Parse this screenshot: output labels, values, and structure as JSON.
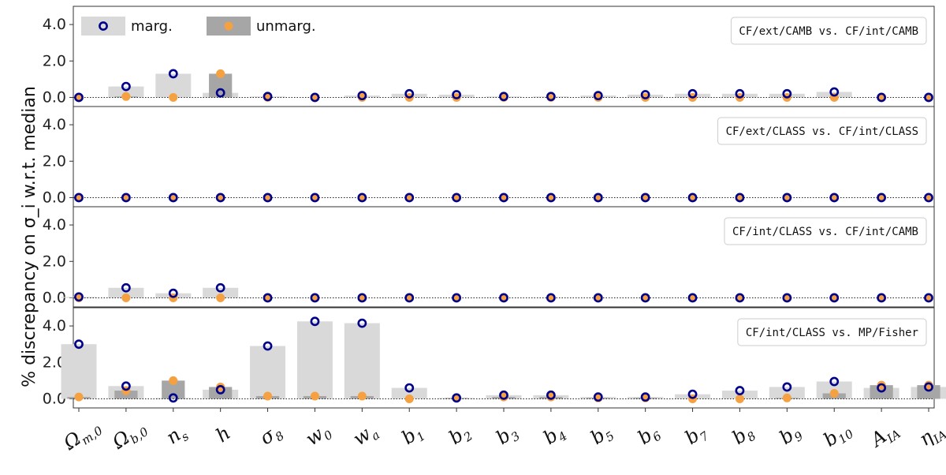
{
  "chart_data": {
    "type": "bar",
    "ylabel": "% discrepancy on σ_i w.r.t. median",
    "categories": [
      "Ω_m,0",
      "Ω_b,0",
      "n_s",
      "h",
      "σ_8",
      "w_0",
      "w_a",
      "b_1",
      "b_2",
      "b_3",
      "b_4",
      "b_5",
      "b_6",
      "b_7",
      "b_8",
      "b_9",
      "b_10",
      "A_IA",
      "η_IA"
    ],
    "ylim": [
      -0.5,
      5.0
    ],
    "yticks": [
      "0.0",
      "2.0",
      "4.0"
    ],
    "legend": {
      "placement": "top-left",
      "entries": [
        "marg.",
        "unmarg."
      ]
    },
    "colors": {
      "marg_bar": "#d9d9d9",
      "unmarg_bar": "#a6a6a6",
      "marg_marker": "#00008b",
      "unmarg_marker": "#f5a142"
    },
    "panels": [
      {
        "label": "CF/ext/CAMB vs. CF/int/CAMB",
        "marg": [
          0.0,
          0.6,
          1.3,
          0.25,
          0.05,
          0.0,
          0.1,
          0.2,
          0.15,
          0.05,
          0.05,
          0.1,
          0.15,
          0.2,
          0.2,
          0.2,
          0.3,
          0.0,
          0.0
        ],
        "unmarg": [
          0.0,
          0.05,
          0.0,
          1.3,
          0.0,
          0.0,
          0.0,
          0.0,
          0.0,
          0.0,
          0.0,
          0.0,
          0.0,
          0.0,
          0.0,
          0.0,
          0.0,
          0.0,
          0.0
        ]
      },
      {
        "label": "CF/ext/CLASS vs. CF/int/CLASS",
        "marg": [
          0,
          0,
          0,
          0,
          0,
          0,
          0,
          0,
          0,
          0,
          0,
          0,
          0,
          0,
          0,
          0,
          0,
          0,
          0
        ],
        "unmarg": [
          0,
          0,
          0,
          0,
          0,
          0,
          0,
          0,
          0,
          0,
          0,
          0,
          0,
          0,
          0,
          0,
          0,
          0,
          0
        ]
      },
      {
        "label": "CF/int/CLASS vs. CF/int/CAMB",
        "marg": [
          0.05,
          0.55,
          0.25,
          0.55,
          0.0,
          0.0,
          0.0,
          0.0,
          0.0,
          0.0,
          0.0,
          0.0,
          0.0,
          0.0,
          0.0,
          0.0,
          0.0,
          0.0,
          0.0
        ],
        "unmarg": [
          0.0,
          0.0,
          0.0,
          0.0,
          0.0,
          0.0,
          0.0,
          0.0,
          0.0,
          0.0,
          0.0,
          0.0,
          0.0,
          0.0,
          0.0,
          0.0,
          0.0,
          0.0,
          0.0
        ]
      },
      {
        "label": "CF/int/CLASS vs. MP/Fisher",
        "marg": [
          3.0,
          0.7,
          0.05,
          0.5,
          2.9,
          4.25,
          4.15,
          0.6,
          0.05,
          0.2,
          0.2,
          0.1,
          0.1,
          0.25,
          0.45,
          0.65,
          0.95,
          0.6,
          0.65
        ],
        "unmarg": [
          0.1,
          0.45,
          1.0,
          0.65,
          0.15,
          0.15,
          0.15,
          0.0,
          0.05,
          0.1,
          0.1,
          0.05,
          0.05,
          0.0,
          0.0,
          0.05,
          0.3,
          0.75,
          0.75
        ]
      }
    ]
  }
}
